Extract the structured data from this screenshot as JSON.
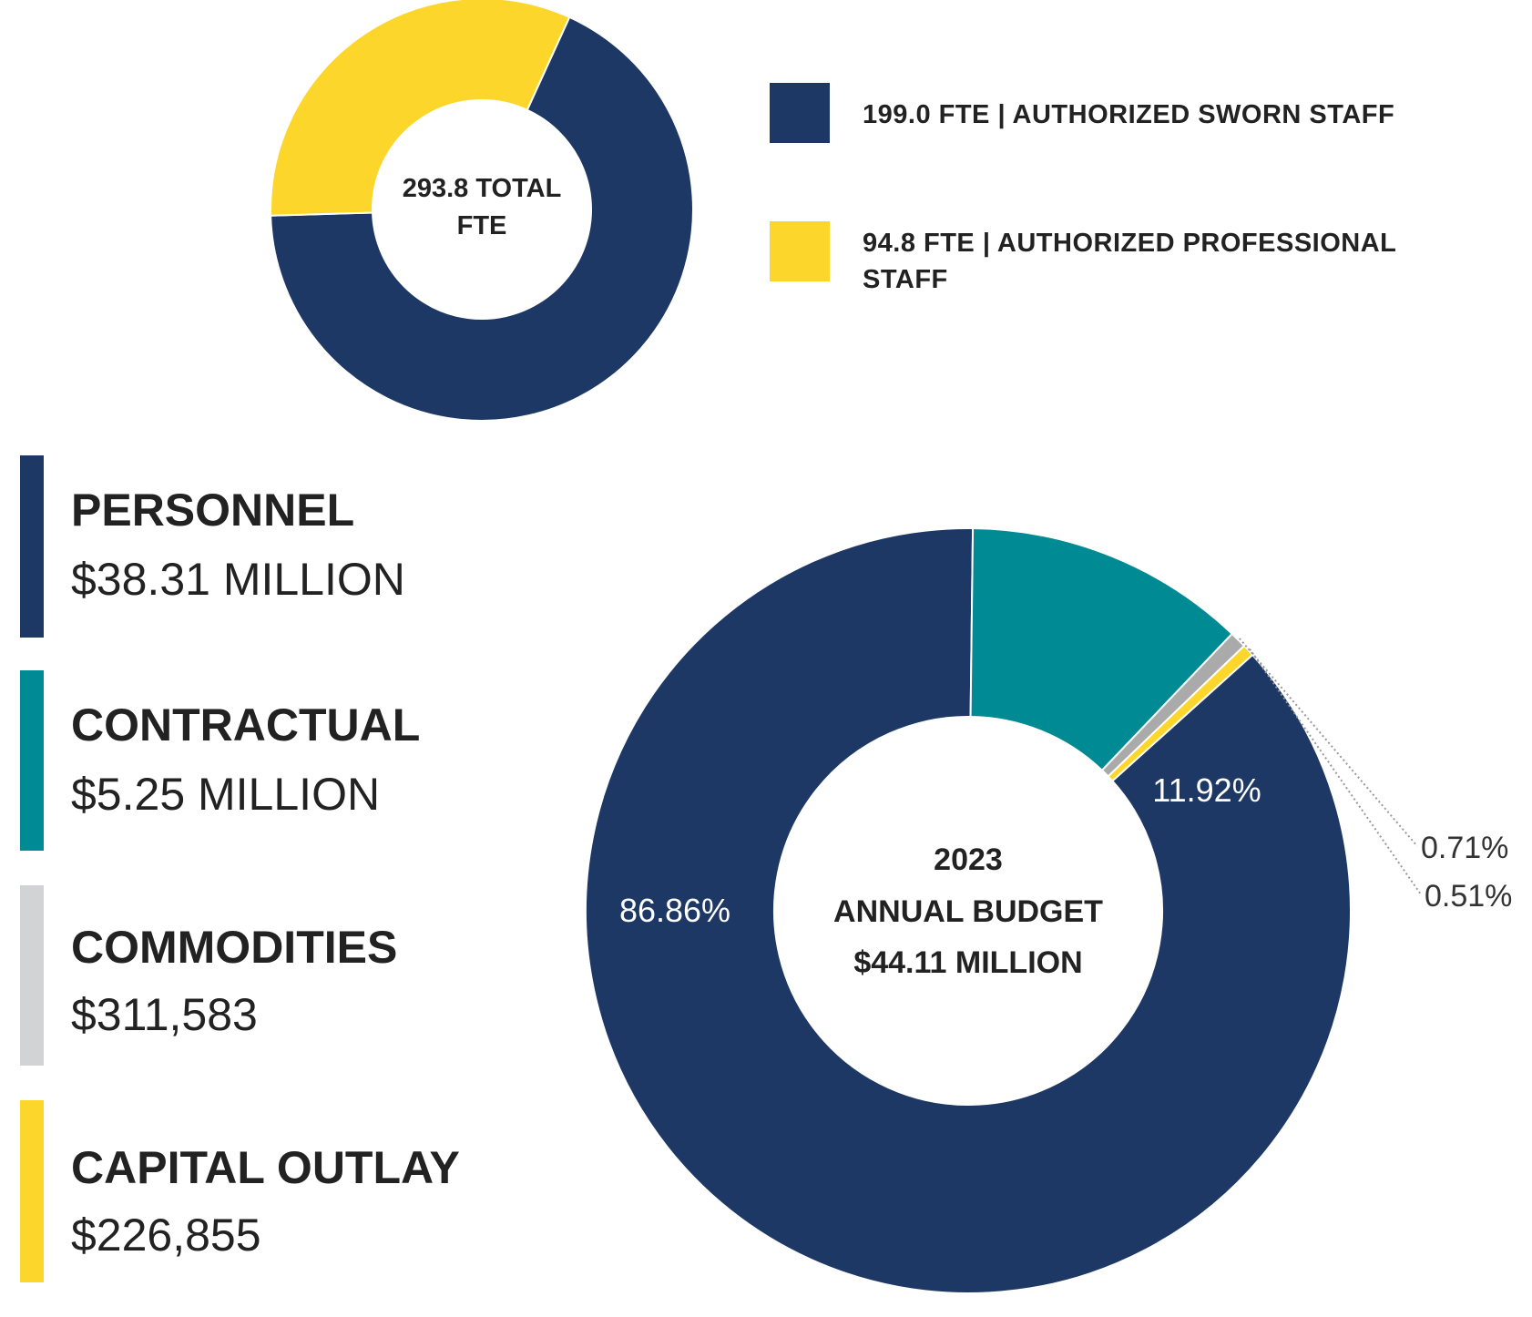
{
  "colors": {
    "navy": "#1e3866",
    "yellow": "#fdd62b",
    "teal": "#008a93",
    "gray": "#aaaaaa",
    "light_gray": "#d1d3d4"
  },
  "chart_data": [
    {
      "type": "pie",
      "variant": "donut",
      "title": "293.8 TOTAL FTE",
      "center_lines": [
        "293.8 TOTAL",
        "FTE"
      ],
      "series": [
        {
          "name": "199.0  FTE | AUTHORIZED SWORN STAFF",
          "value": 199.0,
          "color": "#1e3866"
        },
        {
          "name": "94.8 FTE | AUTHORIZED PROFESSIONAL STAFF",
          "value": 94.8,
          "color": "#fdd62b"
        }
      ],
      "legend": {
        "entries": [
          {
            "lines": [
              "199.0  FTE | AUTHORIZED SWORN STAFF"
            ],
            "color": "#1e3866"
          },
          {
            "lines": [
              "94.8 FTE | AUTHORIZED PROFESSIONAL",
              "STAFF"
            ],
            "color": "#fdd62b"
          }
        ],
        "position": "right"
      }
    },
    {
      "type": "pie",
      "variant": "donut",
      "title": "2023 ANNUAL BUDGET $44.11 MILLION",
      "center_lines": [
        "2023",
        "ANNUAL BUDGET",
        "$44.11 MILLION"
      ],
      "series": [
        {
          "name": "PERSONNEL",
          "amount": "$38.31 MILLION",
          "value": 86.86,
          "label": "86.86%",
          "color": "#1e3866"
        },
        {
          "name": "CONTRACTUAL",
          "amount": "$5.25 MILLION",
          "value": 11.92,
          "label": "11.92%",
          "color": "#008a93"
        },
        {
          "name": "COMMODITIES",
          "amount": "$311,583",
          "value": 0.71,
          "label": "0.71%",
          "color": "#aaaaaa"
        },
        {
          "name": "CAPITAL OUTLAY",
          "amount": "$226,855",
          "value": 0.51,
          "label": "0.51%",
          "color": "#fdd62b"
        }
      ],
      "legend": {
        "entries": [
          {
            "name": "PERSONNEL",
            "amount": "$38.31 MILLION",
            "color": "#1e3866"
          },
          {
            "name": "CONTRACTUAL",
            "amount": "$5.25 MILLION",
            "color": "#008a93"
          },
          {
            "name": "COMMODITIES",
            "amount": "$311,583",
            "color": "#d1d3d4"
          },
          {
            "name": "CAPITAL OUTLAY",
            "amount": "$226,855",
            "color": "#fdd62b"
          }
        ],
        "position": "left"
      }
    }
  ]
}
